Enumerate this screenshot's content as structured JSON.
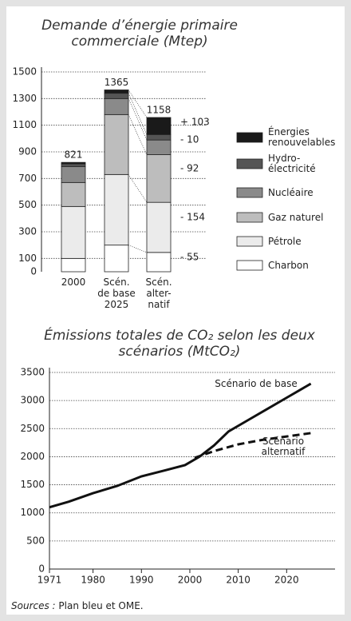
{
  "chart_data": [
    {
      "type": "bar",
      "stacked": true,
      "title": "Demande d’énergie primaire commerciale (Mtep)",
      "categories": [
        [
          "2000"
        ],
        [
          "Scén.",
          "de base",
          "2025"
        ],
        [
          "Scén.",
          "alter-",
          "natif"
        ]
      ],
      "series": [
        {
          "name": "Charbon",
          "color": "#ffffff",
          "values": [
            100,
            200,
            145
          ]
        },
        {
          "name": "Pétrole",
          "color": "#ebebeb",
          "values": [
            390,
            530,
            376
          ]
        },
        {
          "name": "Gaz naturel",
          "color": "#bdbdbd",
          "values": [
            180,
            450,
            358
          ]
        },
        {
          "name": "Nucléaire",
          "color": "#8a8a8a",
          "values": [
            120,
            120,
            110
          ]
        },
        {
          "name": "Hydro-électricité",
          "color": "#555555",
          "values": [
            20,
            40,
            41
          ]
        },
        {
          "name": "Énergies renouvelables",
          "color": "#1a1a1a",
          "values": [
            11,
            25,
            128
          ]
        }
      ],
      "totals": [
        821,
        1365,
        1158
      ],
      "annotations": [
        "- 55",
        "- 154",
        "- 92",
        "- 10",
        "+ 103"
      ],
      "ylim": [
        0,
        1500
      ],
      "yticks": [
        0,
        100,
        300,
        500,
        700,
        900,
        1100,
        1300,
        1500
      ],
      "grid": true
    },
    {
      "type": "line",
      "title": "Émissions totales de CO₂ selon les deux scénarios (MtCO₂)",
      "series": [
        {
          "name": "Scénario de base",
          "color": "#111111",
          "dash": false,
          "x": [
            1971,
            1975,
            1980,
            1985,
            1990,
            1995,
            1999,
            2002,
            2005,
            2008,
            2012,
            2016,
            2020,
            2025
          ],
          "values": [
            1100,
            1200,
            1350,
            1480,
            1650,
            1760,
            1850,
            2000,
            2200,
            2450,
            2650,
            2850,
            3050,
            3300
          ]
        },
        {
          "name": "Scénario alternatif",
          "color": "#111111",
          "dash": true,
          "x": [
            2001,
            2005,
            2010,
            2015,
            2020,
            2025
          ],
          "values": [
            1980,
            2100,
            2220,
            2300,
            2360,
            2420
          ]
        }
      ],
      "xlim": [
        1971,
        2030
      ],
      "xticks": [
        1971,
        1980,
        1990,
        2000,
        2010,
        2020
      ],
      "ylim": [
        0,
        3500
      ],
      "yticks": [
        0,
        500,
        1000,
        1500,
        2000,
        2500,
        3000,
        3500
      ],
      "grid": true,
      "source_label": "Sources :",
      "source_text": "Plan bleu et OME."
    }
  ]
}
